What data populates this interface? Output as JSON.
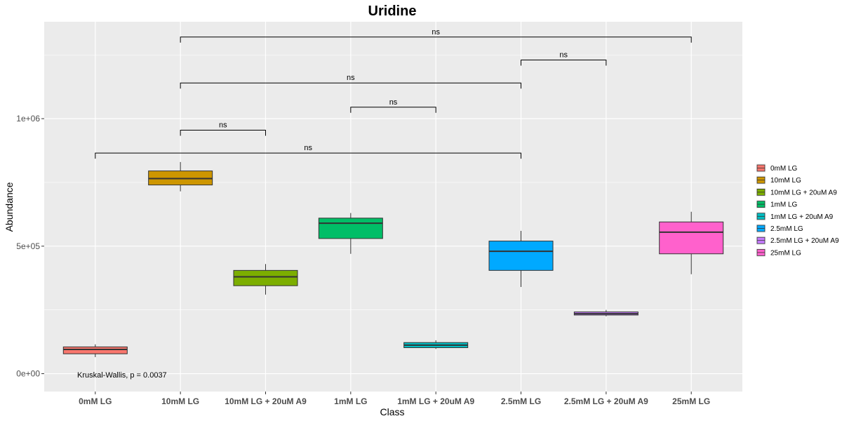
{
  "chart_data": {
    "type": "box",
    "title": "Uridine",
    "xlabel": "Class",
    "ylabel": "Abundance",
    "ylim": [
      -70000,
      1380000
    ],
    "yticks": [
      0,
      500000,
      1000000
    ],
    "ytick_labels": [
      "0e+00",
      "5e+05",
      "1e+06"
    ],
    "categories": [
      "0mM LG",
      "10mM LG",
      "10mM LG + 20uM A9",
      "1mM LG",
      "1mM LG + 20uM A9",
      "2.5mM LG",
      "2.5mM LG + 20uM A9",
      "25mM LG"
    ],
    "boxes": [
      {
        "name": "0mM LG",
        "color": "#F8766D",
        "min": 65000,
        "q1": 78000,
        "median": 95000,
        "q3": 105000,
        "max": 115000
      },
      {
        "name": "10mM LG",
        "color": "#CD9600",
        "min": 715000,
        "q1": 740000,
        "median": 765000,
        "q3": 795000,
        "max": 830000
      },
      {
        "name": "10mM LG + 20uM A9",
        "color": "#7CAE00",
        "min": 310000,
        "q1": 345000,
        "median": 380000,
        "q3": 405000,
        "max": 430000
      },
      {
        "name": "1mM LG",
        "color": "#00BE67",
        "min": 470000,
        "q1": 530000,
        "median": 590000,
        "q3": 610000,
        "max": 630000
      },
      {
        "name": "1mM LG + 20uM A9",
        "color": "#00BFC4",
        "min": 97000,
        "q1": 102000,
        "median": 112000,
        "q3": 122000,
        "max": 131000
      },
      {
        "name": "2.5mM LG",
        "color": "#00A9FF",
        "min": 340000,
        "q1": 405000,
        "median": 480000,
        "q3": 520000,
        "max": 560000
      },
      {
        "name": "2.5mM LG + 20uM A9",
        "color": "#C77CFF",
        "min": 225000,
        "q1": 230000,
        "median": 235000,
        "q3": 242000,
        "max": 250000
      },
      {
        "name": "25mM LG",
        "color": "#FF61CC",
        "min": 390000,
        "q1": 470000,
        "median": 555000,
        "q3": 595000,
        "max": 635000
      }
    ],
    "comparisons": [
      {
        "from": 0,
        "to": 5,
        "label": "ns",
        "y": 865000
      },
      {
        "from": 1,
        "to": 2,
        "label": "ns",
        "y": 955000
      },
      {
        "from": 3,
        "to": 4,
        "label": "ns",
        "y": 1045000
      },
      {
        "from": 1,
        "to": 5,
        "label": "ns",
        "y": 1140000
      },
      {
        "from": 5,
        "to": 6,
        "label": "ns",
        "y": 1230000
      },
      {
        "from": 1,
        "to": 7,
        "label": "ns",
        "y": 1320000
      }
    ],
    "annotation": "Kruskal-Wallis, p = 0.0037",
    "grid": true,
    "legend_position": "right"
  }
}
